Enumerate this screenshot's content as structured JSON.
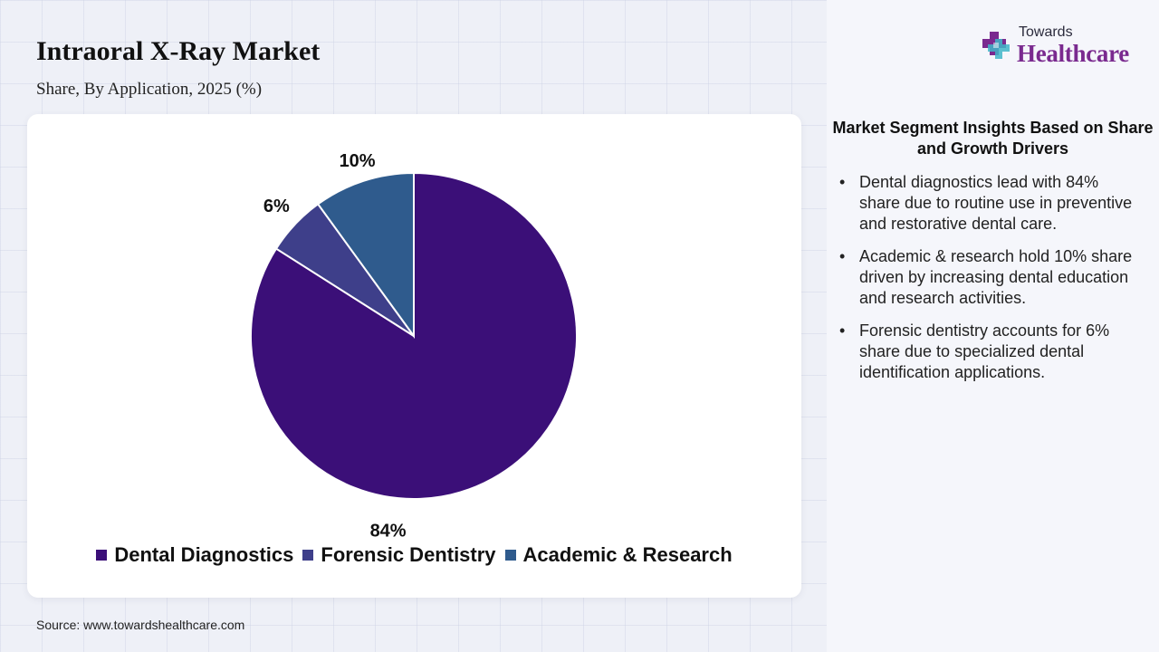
{
  "header": {
    "title": "Intraoral X-Ray Market",
    "subtitle": "Share, By Application, 2025 (%)"
  },
  "chart_data": {
    "type": "pie",
    "categories": [
      "Dental Diagnostics",
      "Forensic Dentistry",
      "Academic & Research"
    ],
    "values": [
      84,
      6,
      10
    ],
    "value_labels": [
      "84%",
      "6%",
      "10%"
    ],
    "colors": [
      "#3b0f78",
      "#3e3f8a",
      "#2f5b8d"
    ],
    "slice_order_clockwise_from_top": [
      "Dental Diagnostics",
      "Forensic Dentistry",
      "Academic & Research"
    ],
    "legend_position": "bottom"
  },
  "source": "Source: www.towardshealthcare.com",
  "logo": {
    "small_text": "Towards",
    "big_text": "Healthcare",
    "icon": "medical-cross-icon"
  },
  "insights": {
    "heading": "Market Segment Insights Based on Share and Growth Drivers",
    "items": [
      "Dental diagnostics lead with 84% share due to routine use in preventive and restorative dental care.",
      "Academic & research hold 10% share driven by increasing dental education and research activities.",
      "Forensic dentistry accounts for 6% share due to specialized dental identification applications."
    ]
  }
}
